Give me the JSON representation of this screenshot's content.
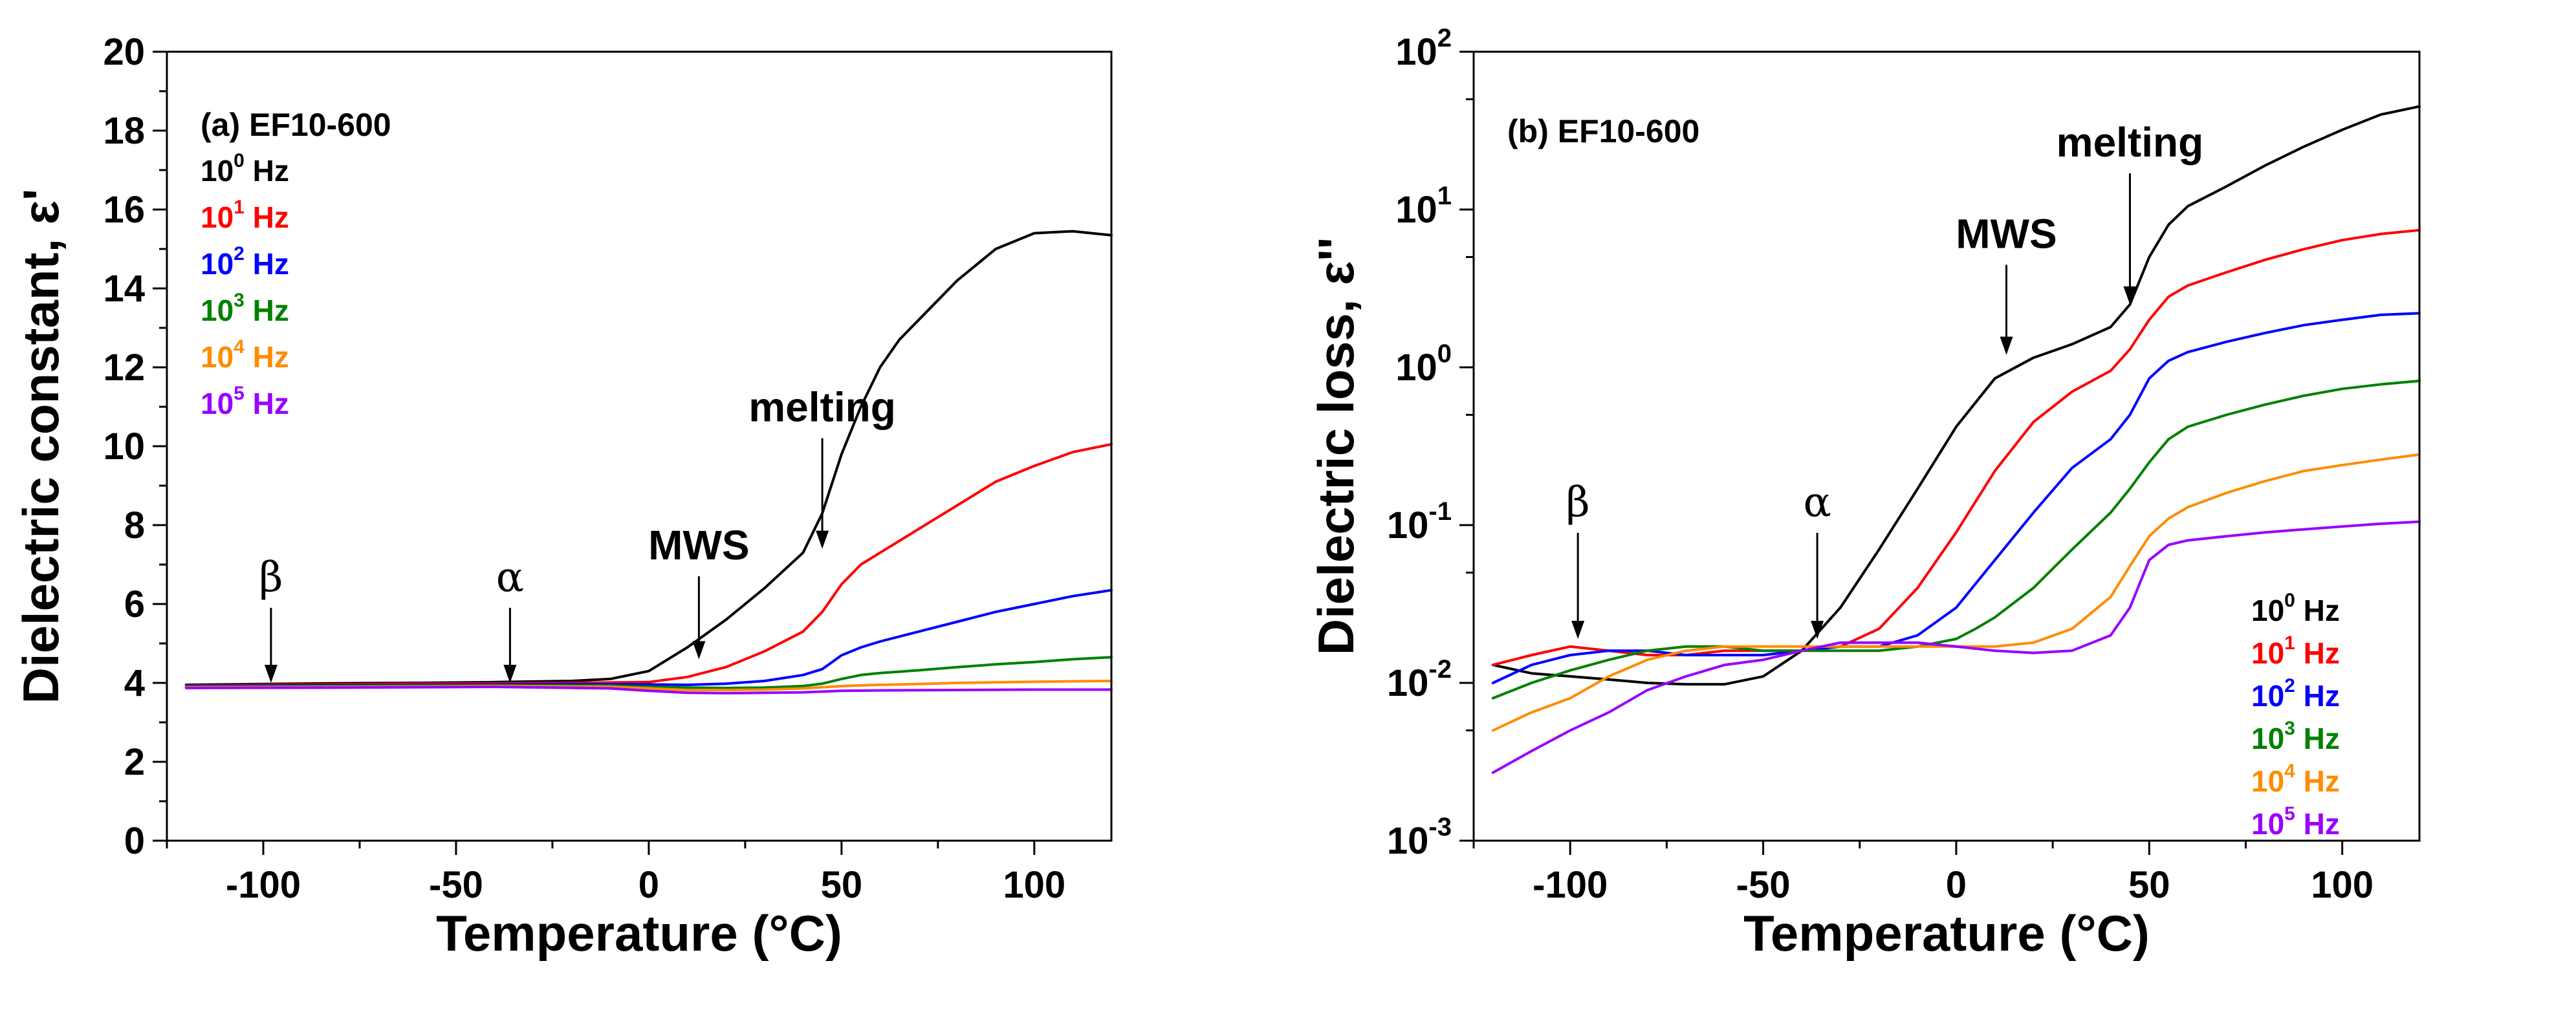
{
  "colors": {
    "black": "#000000",
    "red": "#ff0000",
    "blue": "#0000ff",
    "green": "#008000",
    "orange": "#ff8c00",
    "purple": "#9900ff"
  },
  "chart_data": [
    {
      "type": "line",
      "panel_label": "(a) EF10-600",
      "title": "",
      "xlabel": "Temperature (°C)",
      "ylabel": "Dielectric constant, ε'",
      "xlim": [
        -125,
        120
      ],
      "ylim": [
        0,
        20
      ],
      "yscale": "linear",
      "grid": false,
      "x_ticks": [
        -100,
        -50,
        0,
        50,
        100
      ],
      "y_ticks": [
        0,
        2,
        4,
        6,
        8,
        10,
        12,
        14,
        16,
        18,
        20
      ],
      "legend_position": "top-left",
      "legend": [
        {
          "base": "10",
          "exp": "0",
          "unit": "Hz",
          "color": "#000000"
        },
        {
          "base": "10",
          "exp": "1",
          "unit": "Hz",
          "color": "#ff0000"
        },
        {
          "base": "10",
          "exp": "2",
          "unit": "Hz",
          "color": "#0000ff"
        },
        {
          "base": "10",
          "exp": "3",
          "unit": "Hz",
          "color": "#008000"
        },
        {
          "base": "10",
          "exp": "4",
          "unit": "Hz",
          "color": "#ff8c00"
        },
        {
          "base": "10",
          "exp": "5",
          "unit": "Hz",
          "color": "#9900ff"
        }
      ],
      "annotations": [
        {
          "text": "β",
          "style": "greek",
          "x": -98,
          "y_text": 6.1,
          "y_tip": 4.0
        },
        {
          "text": "α",
          "style": "greek",
          "x": -36,
          "y_text": 6.1,
          "y_tip": 4.0
        },
        {
          "text": "MWS",
          "style": "bold",
          "x": 13,
          "y_text": 6.9,
          "y_tip": 4.6
        },
        {
          "text": "melting",
          "style": "bold",
          "x": 45,
          "y_text": 10.4,
          "y_tip": 7.4
        }
      ],
      "series": [
        {
          "name": "10^0 Hz",
          "color": "#000000",
          "x": [
            -120,
            -100,
            -80,
            -60,
            -40,
            -20,
            -10,
            0,
            10,
            20,
            30,
            40,
            45,
            50,
            55,
            60,
            65,
            70,
            80,
            90,
            100,
            110,
            120
          ],
          "y": [
            3.95,
            3.97,
            3.99,
            4.0,
            4.02,
            4.05,
            4.1,
            4.3,
            4.9,
            5.6,
            6.4,
            7.3,
            8.3,
            9.8,
            11.0,
            12.0,
            12.7,
            13.2,
            14.2,
            15.0,
            15.4,
            15.45,
            15.35
          ]
        },
        {
          "name": "10^1 Hz",
          "color": "#ff0000",
          "x": [
            -120,
            -100,
            -80,
            -60,
            -40,
            -20,
            0,
            10,
            20,
            30,
            40,
            45,
            50,
            55,
            60,
            70,
            80,
            90,
            100,
            110,
            120
          ],
          "y": [
            3.93,
            3.95,
            3.96,
            3.98,
            3.99,
            4.0,
            4.02,
            4.15,
            4.4,
            4.8,
            5.3,
            5.8,
            6.5,
            7.0,
            7.3,
            7.9,
            8.5,
            9.1,
            9.5,
            9.85,
            10.05
          ]
        },
        {
          "name": "10^2 Hz",
          "color": "#0000ff",
          "x": [
            -120,
            -80,
            -40,
            -20,
            0,
            10,
            20,
            30,
            40,
            45,
            50,
            55,
            60,
            70,
            80,
            90,
            100,
            110,
            120
          ],
          "y": [
            3.92,
            3.94,
            3.96,
            3.97,
            3.96,
            3.95,
            3.98,
            4.05,
            4.2,
            4.35,
            4.7,
            4.9,
            5.05,
            5.3,
            5.55,
            5.8,
            6.0,
            6.2,
            6.35
          ]
        },
        {
          "name": "10^3 Hz",
          "color": "#008000",
          "x": [
            -120,
            -80,
            -40,
            -10,
            0,
            10,
            20,
            30,
            40,
            45,
            50,
            55,
            60,
            70,
            80,
            90,
            100,
            110,
            120
          ],
          "y": [
            3.9,
            3.92,
            3.94,
            3.93,
            3.9,
            3.88,
            3.87,
            3.88,
            3.92,
            3.98,
            4.1,
            4.2,
            4.25,
            4.32,
            4.4,
            4.47,
            4.53,
            4.6,
            4.65
          ]
        },
        {
          "name": "10^4 Hz",
          "color": "#ff8c00",
          "x": [
            -120,
            -80,
            -40,
            -10,
            0,
            10,
            20,
            30,
            40,
            50,
            60,
            70,
            80,
            100,
            120
          ],
          "y": [
            3.89,
            3.9,
            3.92,
            3.9,
            3.86,
            3.82,
            3.82,
            3.83,
            3.86,
            3.92,
            3.95,
            3.97,
            4.0,
            4.03,
            4.05
          ]
        },
        {
          "name": "10^5 Hz",
          "color": "#9900ff",
          "x": [
            -120,
            -80,
            -40,
            -10,
            0,
            10,
            20,
            30,
            40,
            50,
            60,
            80,
            100,
            120
          ],
          "y": [
            3.87,
            3.88,
            3.9,
            3.86,
            3.8,
            3.75,
            3.74,
            3.75,
            3.76,
            3.8,
            3.81,
            3.82,
            3.83,
            3.83
          ]
        }
      ]
    },
    {
      "type": "line",
      "panel_label": "(b) EF10-600",
      "title": "",
      "xlabel": "Temperature (°C)",
      "ylabel": "Dielectric loss, ε''",
      "xlim": [
        -125,
        120
      ],
      "ylim": [
        0.001,
        100
      ],
      "yscale": "log",
      "grid": false,
      "x_ticks": [
        -100,
        -50,
        0,
        50,
        100
      ],
      "y_ticks": [
        {
          "base": "10",
          "exp": "-3",
          "value": 0.001
        },
        {
          "base": "10",
          "exp": "-2",
          "value": 0.01
        },
        {
          "base": "10",
          "exp": "-1",
          "value": 0.1
        },
        {
          "base": "10",
          "exp": "0",
          "value": 1
        },
        {
          "base": "10",
          "exp": "1",
          "value": 10
        },
        {
          "base": "10",
          "exp": "2",
          "value": 100
        }
      ],
      "legend_position": "bottom-right",
      "legend": [
        {
          "base": "10",
          "exp": "0",
          "unit": "Hz",
          "color": "#000000"
        },
        {
          "base": "10",
          "exp": "1",
          "unit": "Hz",
          "color": "#ff0000"
        },
        {
          "base": "10",
          "exp": "2",
          "unit": "Hz",
          "color": "#0000ff"
        },
        {
          "base": "10",
          "exp": "3",
          "unit": "Hz",
          "color": "#008000"
        },
        {
          "base": "10",
          "exp": "4",
          "unit": "Hz",
          "color": "#ff8c00"
        },
        {
          "base": "10",
          "exp": "5",
          "unit": "Hz",
          "color": "#9900ff"
        }
      ],
      "annotations": [
        {
          "text": "β",
          "style": "greek",
          "x": -98,
          "y_text": 0.1,
          "y_tip": 0.019
        },
        {
          "text": "α",
          "style": "greek",
          "x": -36,
          "y_text": 0.1,
          "y_tip": 0.019
        },
        {
          "text": "MWS",
          "style": "bold",
          "x": 13,
          "y_text": 5.0,
          "y_tip": 1.2
        },
        {
          "text": "melting",
          "style": "bold",
          "x": 45,
          "y_text": 19,
          "y_tip": 2.5
        }
      ],
      "series": [
        {
          "name": "10^0 Hz",
          "color": "#000000",
          "x": [
            -120,
            -110,
            -100,
            -90,
            -80,
            -70,
            -60,
            -50,
            -40,
            -30,
            -20,
            -10,
            0,
            10,
            20,
            30,
            40,
            45,
            50,
            55,
            60,
            70,
            80,
            90,
            100,
            110,
            120
          ],
          "y": [
            0.013,
            0.0115,
            0.011,
            0.0105,
            0.01,
            0.0098,
            0.0098,
            0.011,
            0.016,
            0.03,
            0.07,
            0.17,
            0.42,
            0.85,
            1.15,
            1.4,
            1.8,
            2.5,
            5.0,
            8.0,
            10.5,
            14,
            19,
            25,
            32,
            40,
            45
          ]
        },
        {
          "name": "10^1 Hz",
          "color": "#ff0000",
          "x": [
            -120,
            -110,
            -100,
            -90,
            -80,
            -70,
            -60,
            -50,
            -40,
            -30,
            -20,
            -10,
            0,
            10,
            20,
            30,
            40,
            45,
            50,
            55,
            60,
            70,
            80,
            90,
            100,
            110,
            120
          ],
          "y": [
            0.013,
            0.015,
            0.017,
            0.016,
            0.015,
            0.015,
            0.016,
            0.016,
            0.016,
            0.017,
            0.022,
            0.04,
            0.09,
            0.22,
            0.45,
            0.7,
            0.95,
            1.3,
            2.0,
            2.8,
            3.3,
            4.0,
            4.8,
            5.6,
            6.4,
            7.0,
            7.4
          ]
        },
        {
          "name": "10^2 Hz",
          "color": "#0000ff",
          "x": [
            -120,
            -110,
            -100,
            -90,
            -80,
            -70,
            -60,
            -50,
            -40,
            -30,
            -20,
            -10,
            0,
            10,
            20,
            30,
            40,
            45,
            50,
            55,
            60,
            70,
            80,
            90,
            100,
            110,
            120
          ],
          "y": [
            0.01,
            0.013,
            0.015,
            0.016,
            0.016,
            0.015,
            0.015,
            0.015,
            0.016,
            0.017,
            0.017,
            0.02,
            0.03,
            0.06,
            0.12,
            0.23,
            0.35,
            0.5,
            0.85,
            1.1,
            1.25,
            1.45,
            1.65,
            1.85,
            2.0,
            2.15,
            2.2
          ]
        },
        {
          "name": "10^3 Hz",
          "color": "#008000",
          "x": [
            -120,
            -110,
            -100,
            -90,
            -80,
            -70,
            -60,
            -50,
            -40,
            -30,
            -20,
            -10,
            0,
            5,
            10,
            20,
            30,
            40,
            45,
            50,
            55,
            60,
            70,
            80,
            90,
            100,
            110,
            120
          ],
          "y": [
            0.008,
            0.01,
            0.012,
            0.014,
            0.016,
            0.017,
            0.017,
            0.016,
            0.016,
            0.016,
            0.016,
            0.017,
            0.019,
            0.022,
            0.026,
            0.04,
            0.07,
            0.12,
            0.17,
            0.25,
            0.35,
            0.42,
            0.5,
            0.58,
            0.66,
            0.73,
            0.78,
            0.82
          ]
        },
        {
          "name": "10^4 Hz",
          "color": "#ff8c00",
          "x": [
            -120,
            -110,
            -100,
            -90,
            -80,
            -70,
            -60,
            -50,
            -40,
            -30,
            -20,
            -10,
            0,
            10,
            20,
            30,
            40,
            45,
            50,
            55,
            60,
            70,
            80,
            90,
            100,
            110,
            120
          ],
          "y": [
            0.005,
            0.0065,
            0.008,
            0.011,
            0.014,
            0.016,
            0.017,
            0.017,
            0.017,
            0.017,
            0.017,
            0.017,
            0.017,
            0.017,
            0.018,
            0.022,
            0.035,
            0.055,
            0.085,
            0.11,
            0.13,
            0.16,
            0.19,
            0.22,
            0.24,
            0.26,
            0.28
          ]
        },
        {
          "name": "10^5 Hz",
          "color": "#9900ff",
          "x": [
            -120,
            -110,
            -100,
            -90,
            -80,
            -70,
            -60,
            -50,
            -40,
            -30,
            -20,
            -10,
            0,
            10,
            20,
            30,
            40,
            45,
            50,
            55,
            60,
            70,
            80,
            90,
            100,
            110,
            120
          ],
          "y": [
            0.0027,
            0.0037,
            0.005,
            0.0065,
            0.009,
            0.011,
            0.013,
            0.014,
            0.016,
            0.018,
            0.018,
            0.018,
            0.017,
            0.016,
            0.0155,
            0.016,
            0.02,
            0.03,
            0.06,
            0.075,
            0.08,
            0.085,
            0.09,
            0.094,
            0.098,
            0.102,
            0.105
          ]
        }
      ]
    }
  ]
}
